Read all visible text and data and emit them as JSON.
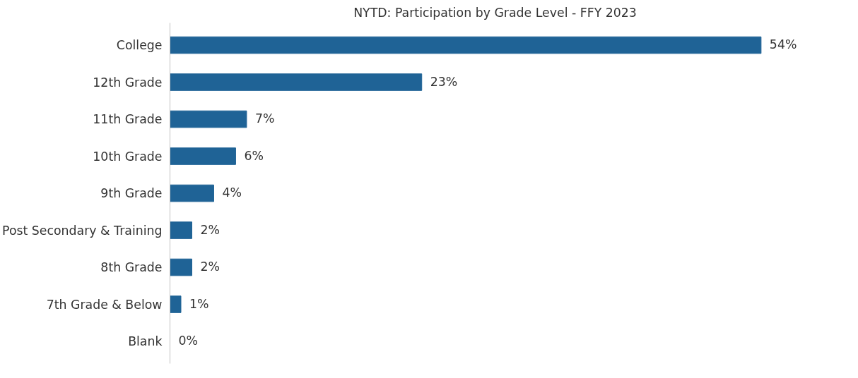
{
  "chart_data": {
    "type": "bar",
    "orientation": "horizontal",
    "title": "NYTD: Participation by Grade Level - FFY 2023",
    "categories": [
      "College",
      "12th Grade",
      "11th Grade",
      "10th Grade",
      "9th Grade",
      "Post Secondary & Training",
      "8th Grade",
      "7th Grade & Below",
      "Blank"
    ],
    "values": [
      54,
      23,
      7,
      6,
      4,
      2,
      2,
      1,
      0
    ],
    "value_labels": [
      "54%",
      "23%",
      "7%",
      "6%",
      "4%",
      "2%",
      "2%",
      "1%",
      "0%"
    ],
    "color": "#1f6396",
    "grid": false
  }
}
